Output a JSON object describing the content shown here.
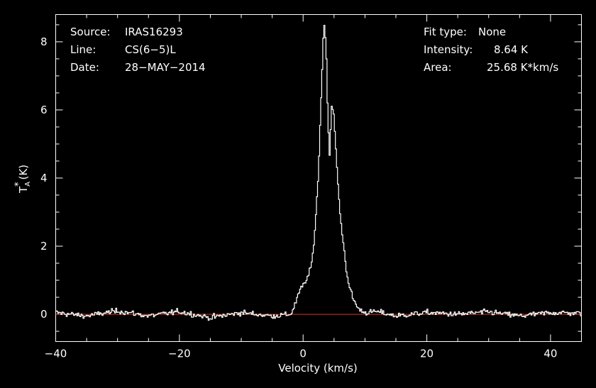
{
  "chart_data": {
    "type": "line",
    "xlabel": "Velocity (km/s)",
    "ylabel": "T_A^* (K)",
    "xlim": [
      -40,
      45
    ],
    "ylim": [
      -0.8,
      8.8
    ],
    "x_ticks": [
      -40,
      -20,
      0,
      20,
      40
    ],
    "y_ticks": [
      0,
      2,
      4,
      6,
      8
    ],
    "grid": false,
    "legend": "none",
    "colors": {
      "background": "#000000",
      "spectrum": "#ffffff",
      "baseline": "#e03020",
      "axes": "#ffffff"
    },
    "baseline_value": 0,
    "spectrum": {
      "x": [
        -40,
        -35,
        -30,
        -25,
        -20,
        -15,
        -10,
        -5,
        -2,
        -1.5,
        -1,
        -0.5,
        0,
        0.5,
        1,
        1.5,
        2,
        2.5,
        3,
        3.3,
        3.5,
        3.8,
        4.0,
        4.3,
        4.6,
        5.0,
        5.5,
        6,
        6.5,
        7,
        7.5,
        8,
        8.5,
        9,
        9.5,
        10,
        12,
        15,
        20,
        25,
        30,
        35,
        40,
        45
      ],
      "y": [
        0.05,
        -0.05,
        0.1,
        -0.05,
        0.08,
        -0.1,
        0.05,
        -0.05,
        0.0,
        0.2,
        0.45,
        0.7,
        0.85,
        1.0,
        1.2,
        1.6,
        2.7,
        4.2,
        6.8,
        8.2,
        8.64,
        7.4,
        5.8,
        4.6,
        6.2,
        5.8,
        4.2,
        2.9,
        2.1,
        1.3,
        0.8,
        0.5,
        0.3,
        0.15,
        0.1,
        0.05,
        0.08,
        -0.05,
        0.05,
        0.0,
        0.07,
        -0.05,
        0.05,
        0.03
      ],
      "noise_rms": 0.08
    },
    "annotations": {
      "source_label": "Source:",
      "source_value": "IRAS16293",
      "line_label": "Line:",
      "line_value": "CS(6−5)L",
      "date_label": "Date:",
      "date_value": "28−MAY−2014",
      "fit_label": "Fit type:",
      "fit_value": "None",
      "intensity_label": "Intensity:",
      "intensity_value": "8.64 K",
      "area_label": "Area:",
      "area_value": "25.68 K*km/s"
    }
  }
}
